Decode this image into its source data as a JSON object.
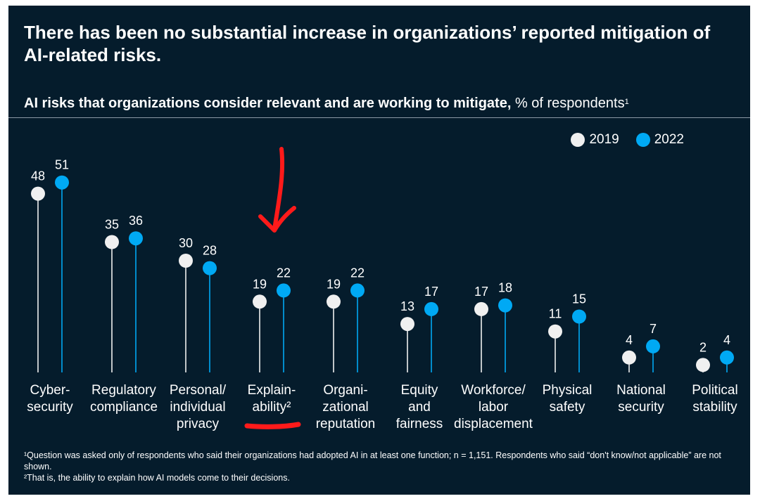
{
  "title": "There has been no substantial increase in organizations’ reported mitigation of AI-related risks.",
  "subtitle_bold": "AI risks that organizations consider relevant and are working to mitigate,",
  "subtitle_rest": " % of respondents",
  "subtitle_sup": "1",
  "legend": [
    {
      "label": "2019",
      "color": "#f0f0f0"
    },
    {
      "label": "2022",
      "color": "#00a9f4"
    }
  ],
  "chart_data": {
    "type": "lollipop",
    "title": "AI risks that organizations consider relevant and are working to mitigate, % of respondents",
    "ylim": [
      0,
      55
    ],
    "categories": [
      [
        "Cyber-",
        "security"
      ],
      [
        "Regulatory",
        "compliance"
      ],
      [
        "Personal/",
        "individual",
        "privacy"
      ],
      [
        "Explain-",
        "ability²"
      ],
      [
        "Organi-",
        "zational",
        "reputation"
      ],
      [
        "Equity",
        "and",
        "fairness"
      ],
      [
        "Workforce/",
        "labor",
        "displacement"
      ],
      [
        "Physical",
        "safety"
      ],
      [
        "National",
        "security"
      ],
      [
        "Political",
        "stability"
      ]
    ],
    "series": [
      {
        "name": "2019",
        "color": "#f0f0f0",
        "values": [
          48,
          35,
          30,
          19,
          19,
          13,
          17,
          11,
          4,
          2
        ]
      },
      {
        "name": "2022",
        "color": "#00a9f4",
        "values": [
          51,
          36,
          28,
          22,
          22,
          17,
          18,
          15,
          7,
          4
        ]
      }
    ]
  },
  "footnotes": [
    "¹Question was asked only of respondents who said their organizations had adopted AI in at least one function; n = 1,151. Respondents who said “don't know/not applicable” are not shown.",
    "²That is, the ability to explain how AI models come to their decisions."
  ]
}
